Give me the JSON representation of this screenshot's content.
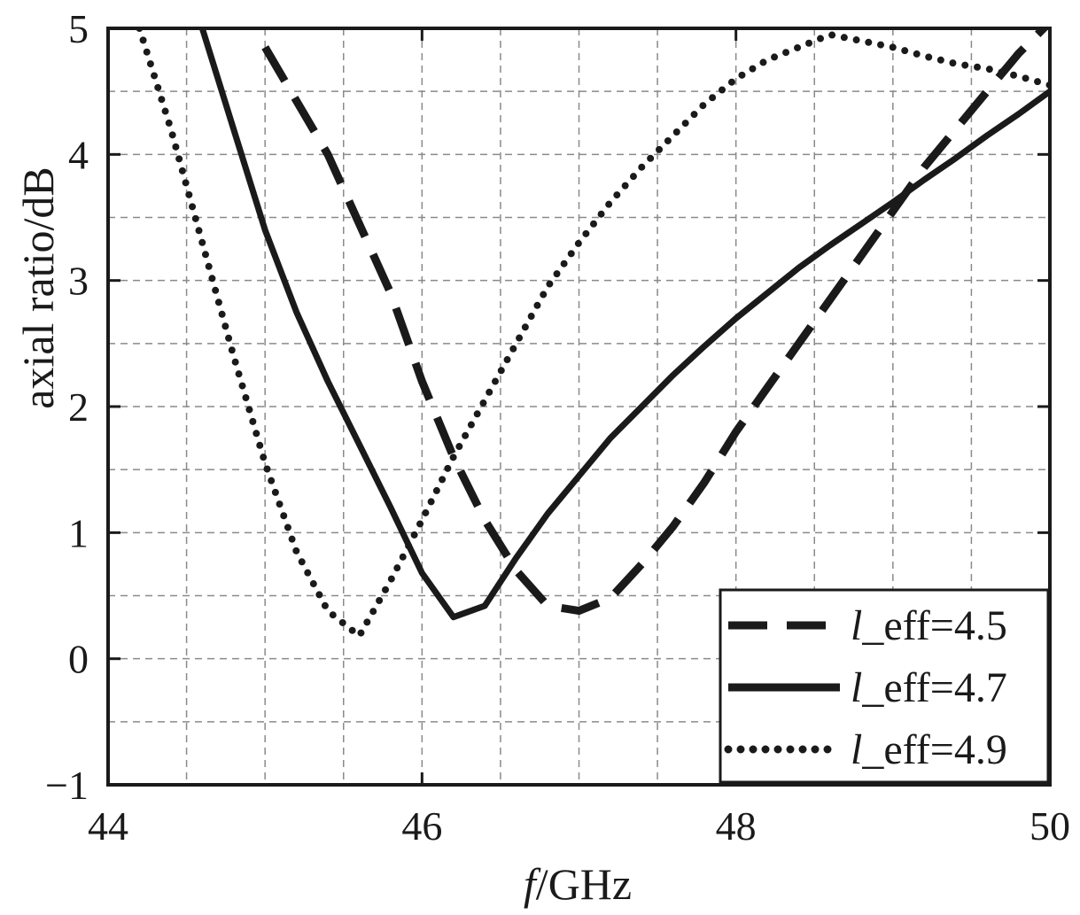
{
  "chart_data": {
    "type": "line",
    "xlabel_italic": "f",
    "xlabel_rest": "/GHz",
    "ylabel": "axial ratio/dB",
    "xlim": [
      44,
      50
    ],
    "ylim": [
      -1,
      5
    ],
    "x_ticks": [
      "44",
      "46",
      "48",
      "50"
    ],
    "y_ticks": [
      "−1",
      "0",
      "1",
      "2",
      "3",
      "4",
      "5"
    ],
    "grid": true,
    "legend_position": "bottom-right",
    "series": [
      {
        "name": "l_eff=4.5",
        "name_italic": "l",
        "name_rest": "_eff=4.5",
        "style": "dashed",
        "x": [
          45.0,
          45.4,
          45.8,
          46.0,
          46.2,
          46.4,
          46.6,
          46.8,
          47.0,
          47.2,
          47.4,
          47.6,
          47.8,
          48.0,
          48.2,
          48.4,
          48.6,
          48.8,
          49.0,
          49.2,
          49.4,
          49.6,
          49.8,
          50.0
        ],
        "y": [
          4.85,
          4.0,
          2.9,
          2.2,
          1.6,
          1.1,
          0.7,
          0.42,
          0.38,
          0.48,
          0.75,
          1.05,
          1.4,
          1.8,
          2.15,
          2.5,
          2.85,
          3.2,
          3.55,
          3.9,
          4.2,
          4.5,
          4.8,
          5.05
        ]
      },
      {
        "name": "l_eff=4.7",
        "name_italic": "l",
        "name_rest": "_eff=4.7",
        "style": "solid",
        "x": [
          44.6,
          44.8,
          45.0,
          45.2,
          45.4,
          45.6,
          45.8,
          46.0,
          46.2,
          46.4,
          46.6,
          46.8,
          47.0,
          47.2,
          47.4,
          47.6,
          47.8,
          48.0,
          48.2,
          48.4,
          48.6,
          48.8,
          49.0,
          49.2,
          49.4,
          49.6,
          49.8,
          50.0
        ],
        "y": [
          5.0,
          4.2,
          3.4,
          2.75,
          2.2,
          1.7,
          1.2,
          0.68,
          0.33,
          0.42,
          0.8,
          1.15,
          1.45,
          1.75,
          2.0,
          2.25,
          2.48,
          2.7,
          2.9,
          3.1,
          3.28,
          3.45,
          3.62,
          3.8,
          3.97,
          4.15,
          4.32,
          4.5
        ]
      },
      {
        "name": "l_eff=4.9",
        "name_italic": "l",
        "name_rest": "_eff=4.9",
        "style": "dotted",
        "x": [
          44.2,
          44.4,
          44.6,
          44.8,
          45.0,
          45.2,
          45.4,
          45.6,
          45.8,
          46.0,
          46.2,
          46.4,
          46.6,
          46.8,
          47.0,
          47.2,
          47.4,
          47.6,
          47.8,
          48.0,
          48.2,
          48.4,
          48.6,
          48.8,
          49.0,
          49.2,
          49.4,
          49.6,
          49.8,
          50.0
        ],
        "y": [
          5.0,
          4.2,
          3.3,
          2.4,
          1.55,
          0.85,
          0.38,
          0.18,
          0.62,
          1.1,
          1.6,
          2.05,
          2.5,
          2.95,
          3.3,
          3.62,
          3.9,
          4.15,
          4.4,
          4.6,
          4.75,
          4.85,
          4.95,
          4.9,
          4.85,
          4.78,
          4.72,
          4.68,
          4.62,
          4.55
        ]
      }
    ]
  }
}
